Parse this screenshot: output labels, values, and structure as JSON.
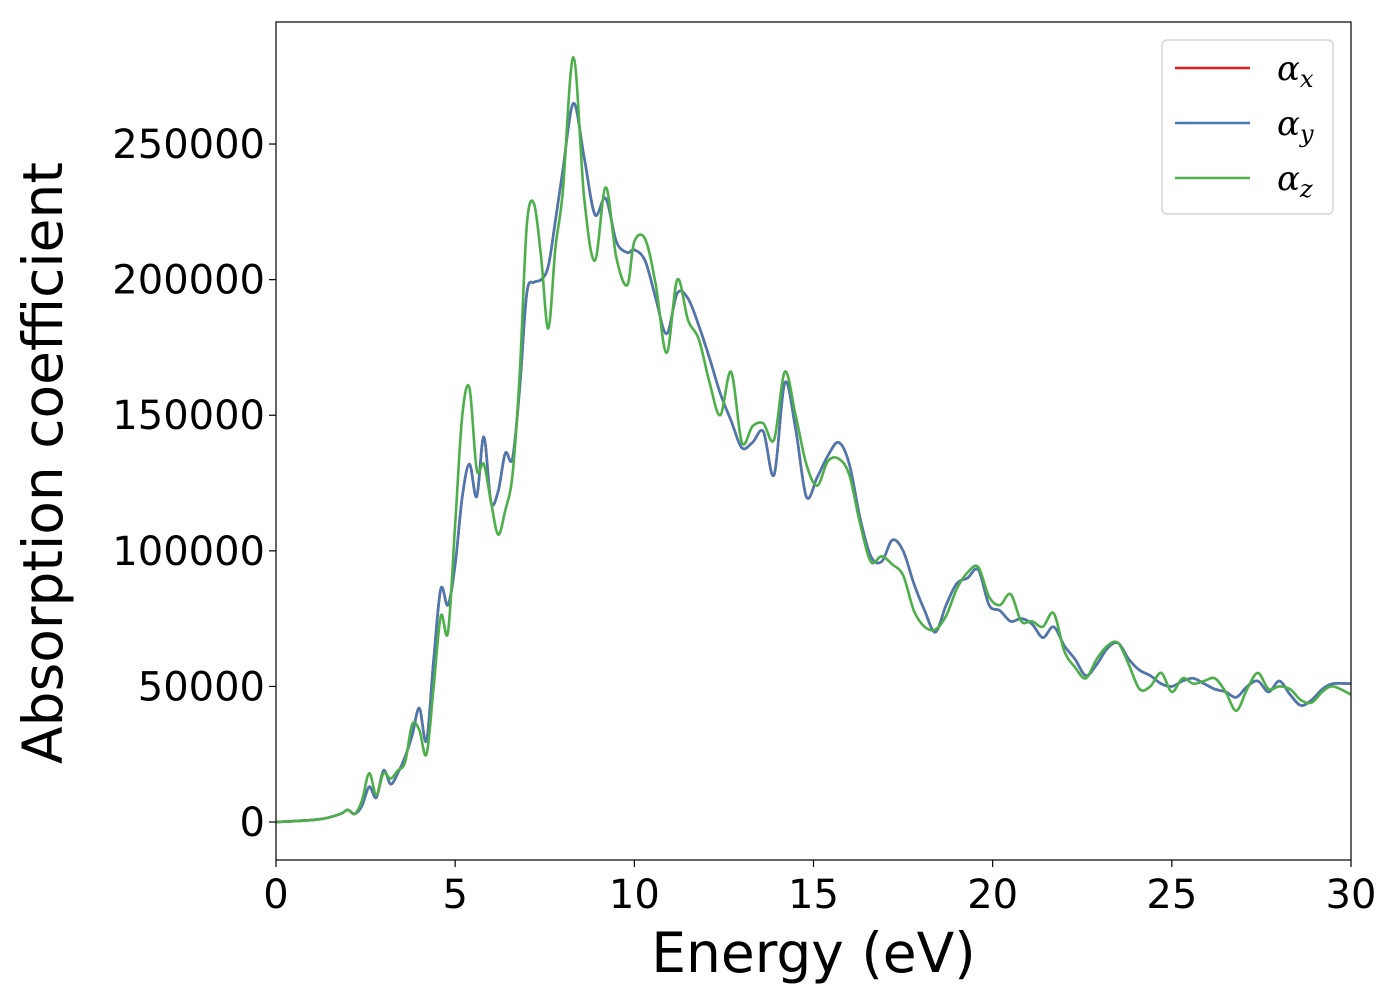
{
  "chart_data": {
    "type": "line",
    "xlabel": "Energy (eV)",
    "ylabel": "Absorption coefficient",
    "xlim": [
      0,
      30
    ],
    "ylim": [
      -14000,
      295000
    ],
    "xticks": [
      0,
      5,
      10,
      15,
      20,
      25,
      30
    ],
    "xtick_labels": [
      "0",
      "5",
      "10",
      "15",
      "20",
      "25",
      "30"
    ],
    "yticks": [
      0,
      50000,
      100000,
      150000,
      200000,
      250000
    ],
    "ytick_labels": [
      "0",
      "50000",
      "100000",
      "150000",
      "200000",
      "250000"
    ],
    "grid": false,
    "legend_position": "top-right",
    "series": [
      {
        "name": "α_x",
        "legend_symbol": "α",
        "legend_subscript": "x",
        "color": "#e41a1c",
        "x": [
          0,
          1.2,
          1.8,
          2.0,
          2.2,
          2.4,
          2.6,
          2.8,
          3.0,
          3.2,
          3.4,
          3.6,
          3.8,
          4.0,
          4.2,
          4.4,
          4.6,
          4.8,
          5.0,
          5.2,
          5.4,
          5.6,
          5.8,
          6.0,
          6.2,
          6.4,
          6.6,
          6.8,
          7.0,
          7.2,
          7.4,
          7.6,
          7.8,
          8.0,
          8.3,
          8.6,
          8.9,
          9.2,
          9.5,
          9.8,
          10.0,
          10.3,
          10.6,
          10.9,
          11.2,
          11.5,
          11.8,
          12.1,
          12.4,
          12.7,
          13.0,
          13.3,
          13.6,
          13.9,
          14.2,
          14.5,
          14.8,
          15.1,
          15.4,
          15.7,
          16.0,
          16.3,
          16.6,
          16.9,
          17.2,
          17.5,
          17.8,
          18.1,
          18.4,
          18.7,
          19.0,
          19.3,
          19.6,
          19.9,
          20.2,
          20.5,
          20.8,
          21.1,
          21.4,
          21.7,
          22.0,
          22.3,
          22.6,
          22.9,
          23.2,
          23.5,
          23.8,
          24.1,
          24.4,
          24.7,
          25.0,
          25.3,
          25.6,
          25.9,
          26.2,
          26.5,
          26.8,
          27.1,
          27.4,
          27.7,
          28.0,
          28.3,
          28.6,
          28.9,
          29.2,
          29.5,
          30.0
        ],
        "y": [
          0,
          1000,
          3000,
          4500,
          3000,
          6000,
          13000,
          9000,
          19000,
          14000,
          18000,
          24000,
          32000,
          42000,
          30000,
          60000,
          86000,
          80000,
          95000,
          120000,
          132000,
          120000,
          142000,
          118000,
          122000,
          136000,
          134000,
          160000,
          195000,
          199000,
          200000,
          205000,
          222000,
          240000,
          265000,
          245000,
          224000,
          230000,
          214000,
          210000,
          211000,
          207000,
          193000,
          180000,
          195000,
          193000,
          183000,
          171000,
          158000,
          148000,
          138000,
          140000,
          144000,
          128000,
          162000,
          145000,
          120000,
          127000,
          135000,
          140000,
          132000,
          112000,
          98000,
          96000,
          104000,
          100000,
          88000,
          78000,
          70000,
          80000,
          88000,
          90000,
          93000,
          80000,
          78000,
          74000,
          75000,
          73000,
          68000,
          72000,
          65000,
          60000,
          54000,
          58000,
          64000,
          66000,
          60000,
          56000,
          54000,
          51000,
          50000,
          52000,
          53000,
          51000,
          49000,
          48000,
          46000,
          50000,
          52000,
          48000,
          52000,
          47000,
          43000,
          45000,
          49000,
          51000,
          51000
        ]
      },
      {
        "name": "α_y",
        "legend_symbol": "α",
        "legend_subscript": "y",
        "color": "#4a78b0",
        "x": [
          0,
          1.2,
          1.8,
          2.0,
          2.2,
          2.4,
          2.6,
          2.8,
          3.0,
          3.2,
          3.4,
          3.6,
          3.8,
          4.0,
          4.2,
          4.4,
          4.6,
          4.8,
          5.0,
          5.2,
          5.4,
          5.6,
          5.8,
          6.0,
          6.2,
          6.4,
          6.6,
          6.8,
          7.0,
          7.2,
          7.4,
          7.6,
          7.8,
          8.0,
          8.3,
          8.6,
          8.9,
          9.2,
          9.5,
          9.8,
          10.0,
          10.3,
          10.6,
          10.9,
          11.2,
          11.5,
          11.8,
          12.1,
          12.4,
          12.7,
          13.0,
          13.3,
          13.6,
          13.9,
          14.2,
          14.5,
          14.8,
          15.1,
          15.4,
          15.7,
          16.0,
          16.3,
          16.6,
          16.9,
          17.2,
          17.5,
          17.8,
          18.1,
          18.4,
          18.7,
          19.0,
          19.3,
          19.6,
          19.9,
          20.2,
          20.5,
          20.8,
          21.1,
          21.4,
          21.7,
          22.0,
          22.3,
          22.6,
          22.9,
          23.2,
          23.5,
          23.8,
          24.1,
          24.4,
          24.7,
          25.0,
          25.3,
          25.6,
          25.9,
          26.2,
          26.5,
          26.8,
          27.1,
          27.4,
          27.7,
          28.0,
          28.3,
          28.6,
          28.9,
          29.2,
          29.5,
          30.0
        ],
        "y": [
          0,
          1000,
          3000,
          4500,
          3000,
          6000,
          13000,
          9000,
          19000,
          14000,
          18000,
          24000,
          32000,
          42000,
          30000,
          60000,
          86000,
          80000,
          95000,
          120000,
          132000,
          120000,
          142000,
          118000,
          122000,
          136000,
          134000,
          160000,
          195000,
          199000,
          200000,
          205000,
          222000,
          240000,
          265000,
          245000,
          224000,
          230000,
          214000,
          210000,
          211000,
          207000,
          193000,
          180000,
          195000,
          193000,
          183000,
          171000,
          158000,
          148000,
          138000,
          140000,
          144000,
          128000,
          162000,
          145000,
          120000,
          127000,
          135000,
          140000,
          132000,
          112000,
          98000,
          96000,
          104000,
          100000,
          88000,
          78000,
          70000,
          80000,
          88000,
          90000,
          93000,
          80000,
          78000,
          74000,
          75000,
          73000,
          68000,
          72000,
          65000,
          60000,
          54000,
          58000,
          64000,
          66000,
          60000,
          56000,
          54000,
          51000,
          50000,
          52000,
          53000,
          51000,
          49000,
          48000,
          46000,
          50000,
          52000,
          48000,
          52000,
          47000,
          43000,
          45000,
          49000,
          51000,
          51000
        ]
      },
      {
        "name": "α_z",
        "legend_symbol": "α",
        "legend_subscript": "z",
        "color": "#4daf4a",
        "x": [
          0,
          1.2,
          1.8,
          2.0,
          2.2,
          2.4,
          2.6,
          2.8,
          3.0,
          3.2,
          3.4,
          3.6,
          3.8,
          4.0,
          4.2,
          4.4,
          4.6,
          4.8,
          5.0,
          5.2,
          5.4,
          5.6,
          5.8,
          6.0,
          6.2,
          6.4,
          6.6,
          6.8,
          7.0,
          7.2,
          7.4,
          7.6,
          7.8,
          8.0,
          8.3,
          8.6,
          8.9,
          9.2,
          9.5,
          9.8,
          10.0,
          10.3,
          10.6,
          10.9,
          11.2,
          11.5,
          11.8,
          12.1,
          12.4,
          12.7,
          13.0,
          13.3,
          13.6,
          13.9,
          14.2,
          14.5,
          14.8,
          15.1,
          15.4,
          15.7,
          16.0,
          16.3,
          16.6,
          16.9,
          17.2,
          17.5,
          17.8,
          18.1,
          18.4,
          18.7,
          19.0,
          19.3,
          19.6,
          19.9,
          20.2,
          20.5,
          20.8,
          21.1,
          21.4,
          21.7,
          22.0,
          22.3,
          22.6,
          22.9,
          23.2,
          23.5,
          23.8,
          24.1,
          24.4,
          24.7,
          25.0,
          25.3,
          25.6,
          25.9,
          26.2,
          26.5,
          26.8,
          27.1,
          27.4,
          27.7,
          28.0,
          28.3,
          28.6,
          28.9,
          29.2,
          29.5,
          30.0
        ],
        "y": [
          0,
          1000,
          3000,
          4500,
          3000,
          8000,
          18000,
          10000,
          18000,
          16000,
          19000,
          22000,
          36000,
          34000,
          25000,
          50000,
          76000,
          70000,
          110000,
          150000,
          160000,
          130000,
          132000,
          118000,
          106000,
          115000,
          128000,
          165000,
          220000,
          228000,
          208000,
          182000,
          212000,
          232000,
          282000,
          230000,
          207000,
          234000,
          208000,
          198000,
          214000,
          215000,
          198000,
          173000,
          200000,
          185000,
          178000,
          162000,
          150000,
          166000,
          140000,
          146000,
          147000,
          141000,
          166000,
          150000,
          132000,
          124000,
          133000,
          134000,
          128000,
          110000,
          96000,
          98000,
          95000,
          91000,
          78000,
          72000,
          71000,
          76000,
          86000,
          92000,
          94000,
          83000,
          80000,
          84000,
          74000,
          74000,
          72000,
          77000,
          63000,
          57000,
          53000,
          60000,
          65000,
          66000,
          58000,
          49000,
          50000,
          55000,
          48000,
          53000,
          51000,
          52000,
          53000,
          48000,
          41000,
          49000,
          55000,
          49000,
          50000,
          49000,
          45000,
          44000,
          48000,
          50000,
          47000
        ]
      }
    ]
  }
}
